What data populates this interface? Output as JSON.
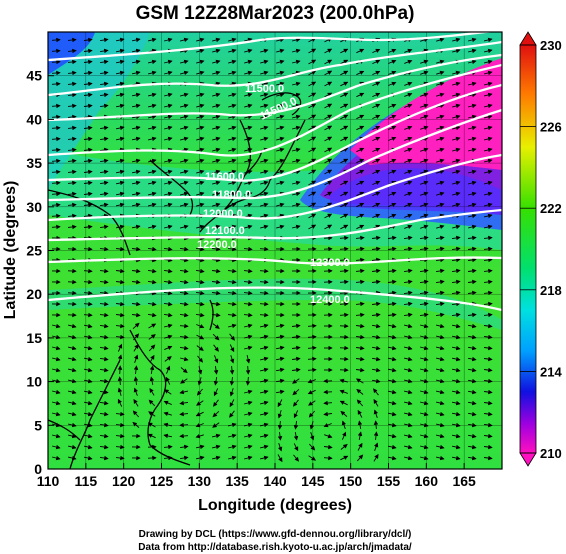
{
  "title": "GSM 12Z28Mar2023 (200.0hPa)",
  "xlabel": "Longitude (degrees)",
  "ylabel": "Latitude  (degrees)",
  "x_ticks": [
    "110",
    "115",
    "120",
    "125",
    "130",
    "135",
    "140",
    "145",
    "150",
    "155",
    "160",
    "165"
  ],
  "y_ticks": [
    "0",
    "5",
    "10",
    "15",
    "20",
    "25",
    "30",
    "35",
    "40",
    "45"
  ],
  "colorbar": {
    "labels": [
      "230",
      "226",
      "222",
      "218",
      "214",
      "210"
    ],
    "colors": [
      "#8b0000",
      "#ff0000",
      "#ff8c00",
      "#ffff00",
      "#7cfc00",
      "#00ff00",
      "#00ffff",
      "#1e90ff",
      "#0000ff",
      "#800080",
      "#ff00ff"
    ]
  },
  "contour_labels": [
    "11500.0",
    "11500.0",
    "11600.0",
    "11800.0",
    "12000.0",
    "12100.0",
    "12200.0",
    "12300.0",
    "12400.0"
  ],
  "credits": {
    "line1": "Drawing by DCL (https://www.gfd-dennou.org/library/dcl/)",
    "line2": "Data from http://database.rish.kyoto-u.ac.jp/arch/jmadata/"
  },
  "chart_data": {
    "type": "heatmap",
    "title": "GSM 12Z28Mar2023 (200.0hPa)",
    "xlabel": "Longitude (degrees)",
    "ylabel": "Latitude  (degrees)",
    "xlim": [
      110,
      170
    ],
    "ylim": [
      0,
      50
    ],
    "colorbar_range": [
      210,
      230
    ],
    "colorbar_ticks": [
      210,
      214,
      218,
      222,
      226,
      230
    ],
    "overlays": [
      "streamlines",
      "height contours",
      "coastlines"
    ]
  }
}
